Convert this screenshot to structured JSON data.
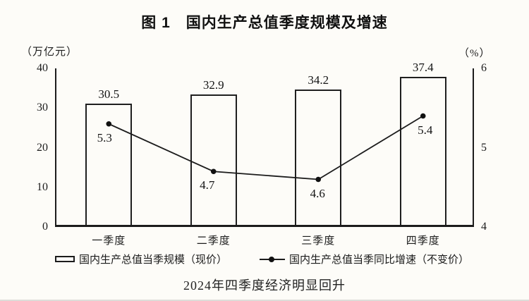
{
  "title": "图 1　国内生产总值季度规模及增速",
  "caption": "2024年四季度经济明显回升",
  "legend": {
    "bar_label": "国内生产总值当季规模（现价）",
    "line_label": "国内生产总值当季同比增速（不变价）"
  },
  "colors": {
    "ink": "#1c1c1c",
    "background": "#fdfcf8",
    "bottom_rule": "#deddd9"
  },
  "chart_data": {
    "type": "bar",
    "subtype": "bar-line-combo",
    "title": "图 1　国内生产总值季度规模及增速",
    "categories": [
      "一季度",
      "二季度",
      "三季度",
      "四季度"
    ],
    "series": [
      {
        "name": "国内生产总值当季规模（现价）",
        "type": "bar",
        "axis": "left",
        "values": [
          30.5,
          32.9,
          34.2,
          37.4
        ]
      },
      {
        "name": "国内生产总值当季同比增速（不变价）",
        "type": "line",
        "axis": "right",
        "values": [
          5.3,
          4.7,
          4.6,
          5.4
        ]
      }
    ],
    "left_axis": {
      "label": "（万亿元）",
      "min": 0,
      "max": 40,
      "ticks": [
        0,
        10,
        20,
        30,
        40
      ]
    },
    "right_axis": {
      "label": "（%）",
      "min": 4,
      "max": 6,
      "ticks": [
        4,
        5,
        6
      ]
    },
    "grid": false,
    "legend_position": "bottom",
    "annotation": "2024年四季度经济明显回升"
  }
}
